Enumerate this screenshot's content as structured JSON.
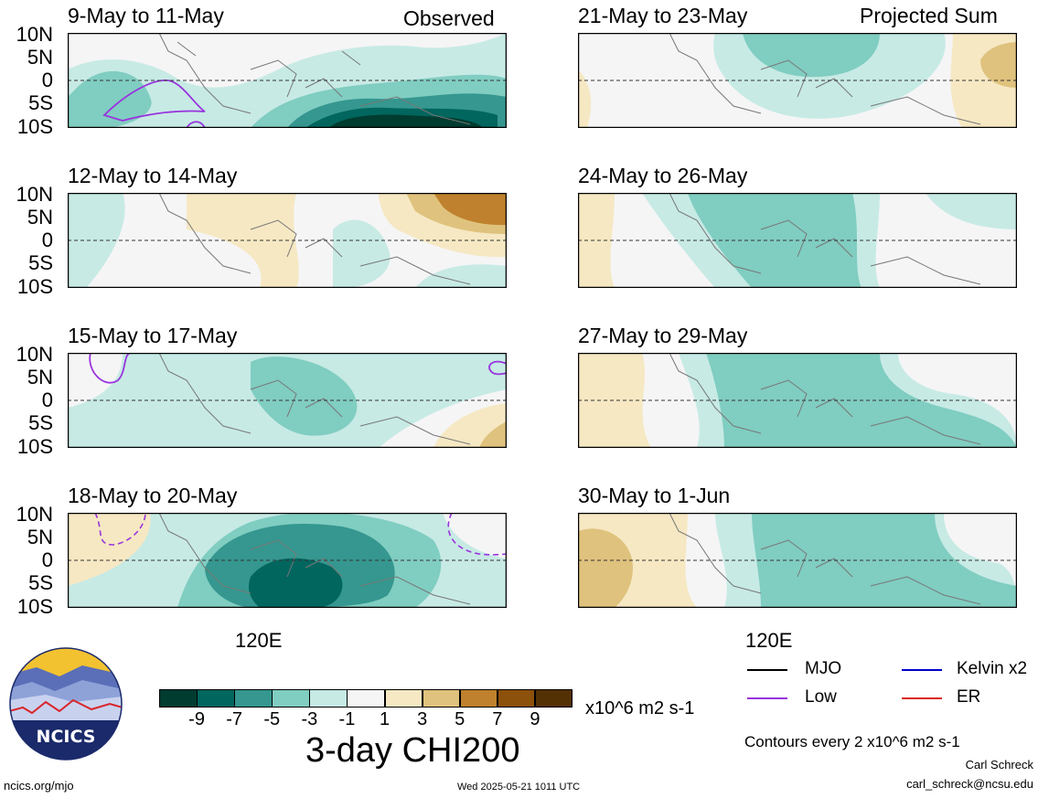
{
  "panels": [
    {
      "title": "9-May to 11-May",
      "tag": "Observed"
    },
    {
      "title": "12-May to 14-May",
      "tag": ""
    },
    {
      "title": "15-May to 17-May",
      "tag": ""
    },
    {
      "title": "18-May to 20-May",
      "tag": ""
    },
    {
      "title": "21-May to 23-May",
      "tag": "Projected Sum"
    },
    {
      "title": "24-May to 26-May",
      "tag": ""
    },
    {
      "title": "27-May to 29-May",
      "tag": ""
    },
    {
      "title": "30-May to 1-Jun",
      "tag": ""
    }
  ],
  "lat_labels": [
    "10N",
    "5N",
    "0",
    "5S",
    "10S"
  ],
  "lon_label": "120E",
  "colorbar": {
    "colors": [
      "#003c30",
      "#01665e",
      "#35978f",
      "#80cdc1",
      "#c7eae5",
      "#f5f5f5",
      "#f6e8c3",
      "#dfc27d",
      "#bf812d",
      "#8c510a",
      "#543005"
    ],
    "ticks": [
      "-9",
      "-7",
      "-5",
      "-3",
      "-1",
      "1",
      "3",
      "5",
      "7",
      "9"
    ],
    "units": "x10^6 m2 s-1",
    "title": "3-day CHI200"
  },
  "legend": {
    "items": [
      {
        "label": "MJO",
        "color": "#000000",
        "style": "solid"
      },
      {
        "label": "Kelvin x2",
        "color": "#0000cc",
        "style": "solid"
      },
      {
        "label": "Low",
        "color": "#9933dd",
        "style": "solid"
      },
      {
        "label": "ER",
        "color": "#dd2222",
        "style": "solid"
      }
    ],
    "contours_note": "Contours every 2 x10^6 m2 s-1"
  },
  "logo": {
    "text": "NCICS"
  },
  "footer": {
    "site": "ncics.org/mjo",
    "timestamp": "Wed 2025-05-21 1011 UTC",
    "author": "Carl Schreck",
    "email": "carl_schreck@ncsu.edu"
  }
}
